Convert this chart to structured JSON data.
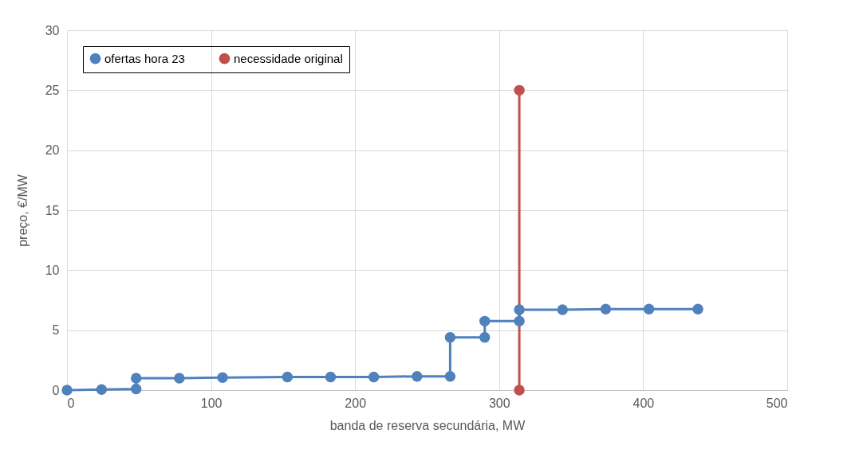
{
  "chart_data": {
    "type": "line",
    "xlabel": "banda de reserva secundária, MW",
    "ylabel": "preço, €/MW",
    "xlim": [
      0,
      500
    ],
    "xticks": [
      0,
      100,
      200,
      300,
      400,
      500
    ],
    "ylim": [
      0,
      30
    ],
    "yticks": [
      0,
      5,
      10,
      15,
      20,
      25,
      30
    ],
    "grid": true,
    "legend": "top left",
    "marker": "circle",
    "line_style": "solid",
    "series": [
      {
        "name": "ofertas hora 23",
        "color": "#4f81bd",
        "x": [
          0,
          24,
          48,
          48,
          78,
          108,
          153,
          183,
          213,
          243,
          266,
          266,
          290,
          290,
          314,
          314,
          344,
          374,
          404,
          438
        ],
        "values": [
          0,
          0.05,
          0.1,
          1.0,
          1.0,
          1.05,
          1.1,
          1.1,
          1.1,
          1.15,
          1.15,
          4.4,
          4.4,
          5.75,
          5.75,
          6.7,
          6.7,
          6.75,
          6.75,
          6.75
        ]
      },
      {
        "name": "necessidade original",
        "color": "#c0504d",
        "x": [
          314,
          314
        ],
        "values": [
          0,
          25
        ]
      }
    ]
  }
}
